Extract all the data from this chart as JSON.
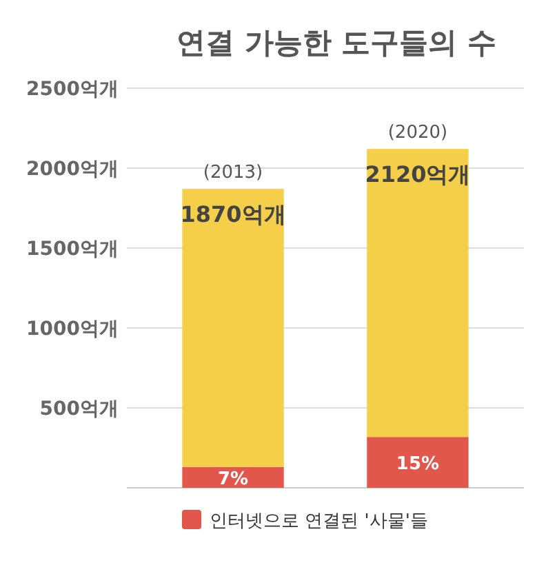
{
  "chart_data": {
    "type": "bar",
    "title": "연결 가능한 도구들의 수",
    "categories": [
      "(2013)",
      "(2020)"
    ],
    "stacked": true,
    "series": [
      {
        "name": "인터넷으로 연결된 '사물'들",
        "color": "#e2574c",
        "values": [
          131,
          318
        ]
      },
      {
        "color": "#f5cf4a",
        "values": [
          1739,
          1802
        ]
      }
    ],
    "annotations": [
      {
        "text": "7%",
        "x": "(2013)",
        "y": 131
      },
      {
        "text": "15%",
        "x": "(2020)",
        "y": 318
      }
    ],
    "totals": [
      "1870억개",
      "2120억개"
    ],
    "ylim": [
      0,
      2500
    ],
    "yticks": [
      {
        "value": 500,
        "label": "500억개"
      },
      {
        "value": 1000,
        "label": "1000억개"
      },
      {
        "value": 1500,
        "label": "1500억개"
      },
      {
        "value": 2000,
        "label": "2000억개"
      },
      {
        "value": 2500,
        "label": "2500억개"
      }
    ],
    "grid": "y",
    "legend": "bottom"
  }
}
